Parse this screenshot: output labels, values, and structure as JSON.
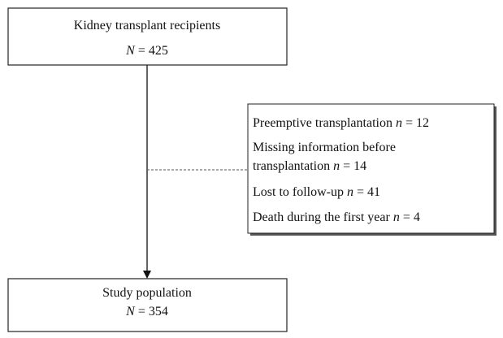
{
  "nodes": [
    {
      "id": "recipients",
      "lines": [
        [
          {
            "text": "Kidney transplant recipients"
          }
        ],
        [
          {
            "text": "N",
            "italic": true
          },
          {
            "text": " = 425"
          }
        ]
      ]
    },
    {
      "id": "exclusions",
      "lines": [
        [
          {
            "text": "Preemptive transplantation "
          },
          {
            "text": "n",
            "italic": true
          },
          {
            "text": " = 12"
          }
        ],
        [
          {
            "text": "Missing information before"
          }
        ],
        [
          {
            "text": "transplantation "
          },
          {
            "text": "n",
            "italic": true
          },
          {
            "text": " = 14"
          }
        ],
        [
          {
            "text": "Lost to follow-up "
          },
          {
            "text": "n",
            "italic": true
          },
          {
            "text": " = 41"
          }
        ],
        [
          {
            "text": "Death during the first year "
          },
          {
            "text": "n",
            "italic": true
          },
          {
            "text": " = 4"
          }
        ]
      ]
    },
    {
      "id": "study",
      "lines": [
        [
          {
            "text": "Study population"
          }
        ],
        [
          {
            "text": "N",
            "italic": true
          },
          {
            "text": " = 354"
          }
        ]
      ]
    }
  ]
}
